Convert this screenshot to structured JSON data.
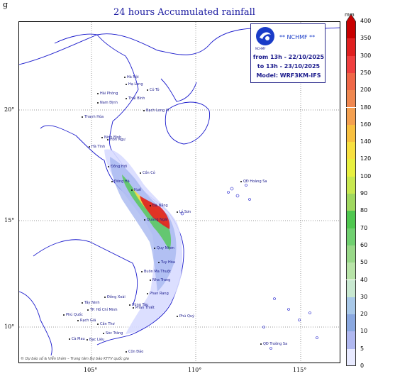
{
  "corner_letter": "g",
  "title": "24 hours Accumulated rainfall",
  "info_box": {
    "agency": "** NCHMF **",
    "logo_text": "NCHMF",
    "from": "from 13h - 22/10/2025",
    "to": "to 13h - 23/10/2025",
    "model": "Model: WRF3KM-IFS"
  },
  "credits": "© Dự báo số & Viễn thám – Trung tâm Dự báo KTTV quốc gia",
  "lat_ticks": [
    "20°",
    "15°",
    "10°"
  ],
  "lon_ticks": [
    "105°",
    "110°",
    "115°"
  ],
  "legend": {
    "unit": "mm",
    "levels": [
      "400",
      "350",
      "300",
      "250",
      "200",
      "180",
      "160",
      "140",
      "120",
      "100",
      "90",
      "80",
      "70",
      "60",
      "50",
      "40",
      "30",
      "20",
      "10",
      "5",
      "0"
    ],
    "colors": [
      "#c80000",
      "#e02020",
      "#f04040",
      "#f06848",
      "#f08850",
      "#f4a050",
      "#f8c040",
      "#f8e040",
      "#e8f040",
      "#c8e850",
      "#a0d860",
      "#50c850",
      "#70d070",
      "#98d888",
      "#b8e4a8",
      "#c8e8d0",
      "#a8c8e8",
      "#8aa8e0",
      "#b0b8f0",
      "#e8eaff"
    ]
  },
  "places": {
    "hanoi": "Hà Nội",
    "thai_binh": "Thái Bình",
    "hai_phong": "Hải Phòng",
    "nam_dinh": "Nam Định",
    "ninh_binh": "Ninh Bình",
    "ha_long": "Hạ Long",
    "co_to": "Cô Tô",
    "bach_long_vi": "Bạch Long Vĩ",
    "thanh_hoa": "Thanh Hóa",
    "hon_ngu": "Hòn Ngư",
    "ha_tinh": "Hà Tĩnh",
    "dong_hoi": "Đồng Hới",
    "con_co": "Cồn Cỏ",
    "dong_ha": "Đông Hà",
    "hue": "Huế",
    "da_nang": "Đà Nẵng",
    "hoang_sa": "QĐ Hoàng Sa",
    "ly_son": "Lý Sơn",
    "quang_ngai": "Quảng Ngãi",
    "quy_nhon": "Quy Nhơn",
    "tuy_hoa": "Tuy Hòa",
    "nha_trang": "Nha Trang",
    "phan_rang": "Phan Rang",
    "phu_quy": "Phú Quý",
    "vung_tau": "Vũng Tàu",
    "phu_quoc": "Phú Quốc",
    "rach_gia": "Rạch Giá",
    "can_tho": "Cần Thơ",
    "soc_trang": "Sóc Trăng",
    "tay_ninh": "Tây Ninh",
    "dong_xoai": "Đồng Xoài",
    "tp_hcm": "TP. Hồ Chí Minh",
    "ca_mau": "Cà Mau",
    "bac_lieu": "Bạc Liêu",
    "con_dao": "Côn Đảo",
    "truong_sa": "QĐ Trường Sa",
    "phan_thiet": "Phan Thiết",
    "buon_ma_thuot": "Buôn Ma Thuột"
  }
}
